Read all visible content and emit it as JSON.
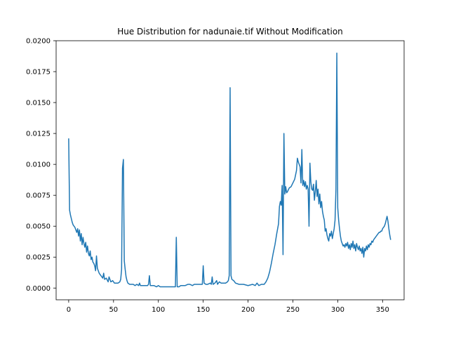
{
  "chart_data": {
    "type": "line",
    "title": "Hue Distribution for nadunaie.tif Without Modification",
    "xlabel": "",
    "ylabel": "",
    "xlim": [
      -14,
      374
    ],
    "ylim": [
      -0.00095,
      0.02
    ],
    "x_ticks": [
      0,
      50,
      100,
      150,
      200,
      250,
      300,
      350
    ],
    "x_tick_labels": [
      "0",
      "50",
      "100",
      "150",
      "200",
      "250",
      "300",
      "350"
    ],
    "y_ticks": [
      0.0,
      0.0025,
      0.005,
      0.0075,
      0.01,
      0.0125,
      0.015,
      0.0175,
      0.02
    ],
    "y_tick_labels": [
      "0.0000",
      "0.0025",
      "0.0050",
      "0.0075",
      "0.0100",
      "0.0125",
      "0.0150",
      "0.0175",
      "0.0200"
    ],
    "grid": false,
    "series": [
      {
        "name": "",
        "color": "#1f77b4",
        "points": [
          [
            0,
            0.0121
          ],
          [
            1,
            0.0063
          ],
          [
            2,
            0.0059
          ],
          [
            3,
            0.0056
          ],
          [
            4,
            0.0053
          ],
          [
            5,
            0.0051
          ],
          [
            6,
            0.005
          ],
          [
            7,
            0.0049
          ],
          [
            8,
            0.0047
          ],
          [
            9,
            0.0045
          ],
          [
            10,
            0.0048
          ],
          [
            11,
            0.0042
          ],
          [
            12,
            0.0047
          ],
          [
            13,
            0.0038
          ],
          [
            14,
            0.0044
          ],
          [
            15,
            0.0035
          ],
          [
            16,
            0.0041
          ],
          [
            17,
            0.0036
          ],
          [
            18,
            0.0033
          ],
          [
            19,
            0.0037
          ],
          [
            20,
            0.0029
          ],
          [
            21,
            0.0034
          ],
          [
            22,
            0.0028
          ],
          [
            23,
            0.0026
          ],
          [
            24,
            0.003
          ],
          [
            25,
            0.0023
          ],
          [
            26,
            0.0025
          ],
          [
            27,
            0.0021
          ],
          [
            28,
            0.002
          ],
          [
            29,
            0.0018
          ],
          [
            30,
            0.0014
          ],
          [
            31,
            0.0026
          ],
          [
            32,
            0.0016
          ],
          [
            33,
            0.0014
          ],
          [
            34,
            0.0012
          ],
          [
            35,
            0.0011
          ],
          [
            36,
            0.001
          ],
          [
            37,
            0.0009
          ],
          [
            38,
            0.0008
          ],
          [
            39,
            0.0012
          ],
          [
            40,
            0.0007
          ],
          [
            42,
            0.0008
          ],
          [
            44,
            0.0005
          ],
          [
            45,
            0.0009
          ],
          [
            47,
            0.0005
          ],
          [
            49,
            0.0006
          ],
          [
            51,
            0.0004
          ],
          [
            53,
            0.0004
          ],
          [
            55,
            0.0004
          ],
          [
            57,
            0.0005
          ],
          [
            58,
            0.0007
          ],
          [
            59,
            0.0015
          ],
          [
            60,
            0.0097
          ],
          [
            61,
            0.0104
          ],
          [
            62,
            0.0022
          ],
          [
            63,
            0.0015
          ],
          [
            64,
            0.0009
          ],
          [
            65,
            0.0006
          ],
          [
            66,
            0.0004
          ],
          [
            68,
            0.0003
          ],
          [
            70,
            0.0003
          ],
          [
            72,
            0.0003
          ],
          [
            74,
            0.0002
          ],
          [
            76,
            0.0003
          ],
          [
            78,
            0.0002
          ],
          [
            79,
            0.0004
          ],
          [
            80,
            0.0002
          ],
          [
            82,
            0.0002
          ],
          [
            84,
            0.0002
          ],
          [
            86,
            0.0002
          ],
          [
            88,
            0.0002
          ],
          [
            89,
            0.0003
          ],
          [
            90,
            0.001
          ],
          [
            91,
            0.0002
          ],
          [
            93,
            0.0002
          ],
          [
            95,
            0.0002
          ],
          [
            98,
            0.0001
          ],
          [
            100,
            0.0002
          ],
          [
            102,
            0.0001
          ],
          [
            105,
            0.0001
          ],
          [
            108,
            0.0001
          ],
          [
            110,
            0.0001
          ],
          [
            112,
            0.0001
          ],
          [
            115,
            0.0001
          ],
          [
            118,
            0.0001
          ],
          [
            119,
            0.0001
          ],
          [
            120,
            0.0041
          ],
          [
            121,
            0.0001
          ],
          [
            123,
            0.0001
          ],
          [
            125,
            0.0002
          ],
          [
            128,
            0.0002
          ],
          [
            130,
            0.0002
          ],
          [
            133,
            0.0003
          ],
          [
            135,
            0.0003
          ],
          [
            138,
            0.0002
          ],
          [
            140,
            0.0003
          ],
          [
            142,
            0.0003
          ],
          [
            145,
            0.0003
          ],
          [
            148,
            0.0003
          ],
          [
            149,
            0.0003
          ],
          [
            150,
            0.0018
          ],
          [
            151,
            0.0004
          ],
          [
            153,
            0.0003
          ],
          [
            155,
            0.0003
          ],
          [
            158,
            0.0004
          ],
          [
            159,
            0.0003
          ],
          [
            160,
            0.0009
          ],
          [
            161,
            0.0003
          ],
          [
            163,
            0.0004
          ],
          [
            165,
            0.0006
          ],
          [
            166,
            0.0003
          ],
          [
            168,
            0.0005
          ],
          [
            170,
            0.0004
          ],
          [
            172,
            0.0004
          ],
          [
            175,
            0.0004
          ],
          [
            177,
            0.0005
          ],
          [
            178,
            0.0006
          ],
          [
            179,
            0.001
          ],
          [
            180,
            0.0162
          ],
          [
            181,
            0.001
          ],
          [
            182,
            0.0007
          ],
          [
            184,
            0.0006
          ],
          [
            186,
            0.0004
          ],
          [
            190,
            0.0003
          ],
          [
            195,
            0.0003
          ],
          [
            200,
            0.0002
          ],
          [
            205,
            0.0003
          ],
          [
            208,
            0.0002
          ],
          [
            210,
            0.0004
          ],
          [
            212,
            0.0002
          ],
          [
            215,
            0.0003
          ],
          [
            218,
            0.0003
          ],
          [
            220,
            0.0005
          ],
          [
            222,
            0.0008
          ],
          [
            224,
            0.0013
          ],
          [
            226,
            0.002
          ],
          [
            228,
            0.0028
          ],
          [
            230,
            0.0035
          ],
          [
            232,
            0.0044
          ],
          [
            234,
            0.0052
          ],
          [
            235,
            0.0066
          ],
          [
            236,
            0.007
          ],
          [
            237,
            0.0067
          ],
          [
            238,
            0.0083
          ],
          [
            239,
            0.0027
          ],
          [
            240,
            0.0125
          ],
          [
            241,
            0.0076
          ],
          [
            242,
            0.0082
          ],
          [
            243,
            0.0077
          ],
          [
            244,
            0.0078
          ],
          [
            246,
            0.0081
          ],
          [
            248,
            0.0082
          ],
          [
            250,
            0.0085
          ],
          [
            252,
            0.0088
          ],
          [
            254,
            0.0095
          ],
          [
            255,
            0.0105
          ],
          [
            256,
            0.0102
          ],
          [
            257,
            0.01
          ],
          [
            258,
            0.0098
          ],
          [
            259,
            0.0085
          ],
          [
            260,
            0.0112
          ],
          [
            261,
            0.0083
          ],
          [
            262,
            0.0087
          ],
          [
            263,
            0.0082
          ],
          [
            264,
            0.0086
          ],
          [
            265,
            0.008
          ],
          [
            266,
            0.0083
          ],
          [
            267,
            0.008
          ],
          [
            268,
            0.005
          ],
          [
            269,
            0.0101
          ],
          [
            270,
            0.0086
          ],
          [
            271,
            0.008
          ],
          [
            272,
            0.0079
          ],
          [
            273,
            0.0084
          ],
          [
            274,
            0.0071
          ],
          [
            275,
            0.0078
          ],
          [
            276,
            0.0087
          ],
          [
            277,
            0.0074
          ],
          [
            278,
            0.008
          ],
          [
            279,
            0.0068
          ],
          [
            280,
            0.0076
          ],
          [
            281,
            0.0065
          ],
          [
            282,
            0.007
          ],
          [
            283,
            0.0062
          ],
          [
            284,
            0.0058
          ],
          [
            285,
            0.0055
          ],
          [
            286,
            0.0046
          ],
          [
            287,
            0.0048
          ],
          [
            288,
            0.0043
          ],
          [
            289,
            0.004
          ],
          [
            290,
            0.0038
          ],
          [
            291,
            0.0044
          ],
          [
            292,
            0.0042
          ],
          [
            293,
            0.0046
          ],
          [
            294,
            0.004
          ],
          [
            295,
            0.0044
          ],
          [
            296,
            0.0048
          ],
          [
            297,
            0.0055
          ],
          [
            298,
            0.008
          ],
          [
            299,
            0.019
          ],
          [
            300,
            0.0065
          ],
          [
            301,
            0.0055
          ],
          [
            302,
            0.0048
          ],
          [
            303,
            0.0042
          ],
          [
            304,
            0.0038
          ],
          [
            305,
            0.0036
          ],
          [
            306,
            0.0034
          ],
          [
            307,
            0.0035
          ],
          [
            308,
            0.0033
          ],
          [
            309,
            0.0036
          ],
          [
            310,
            0.0034
          ],
          [
            311,
            0.0037
          ],
          [
            312,
            0.0032
          ],
          [
            313,
            0.0035
          ],
          [
            314,
            0.0031
          ],
          [
            315,
            0.0036
          ],
          [
            316,
            0.0033
          ],
          [
            317,
            0.0038
          ],
          [
            318,
            0.0032
          ],
          [
            319,
            0.0035
          ],
          [
            320,
            0.003
          ],
          [
            321,
            0.0036
          ],
          [
            322,
            0.0033
          ],
          [
            323,
            0.0031
          ],
          [
            324,
            0.0034
          ],
          [
            325,
            0.003
          ],
          [
            326,
            0.0032
          ],
          [
            327,
            0.0028
          ],
          [
            328,
            0.0033
          ],
          [
            329,
            0.0025
          ],
          [
            330,
            0.0032
          ],
          [
            331,
            0.003
          ],
          [
            332,
            0.0034
          ],
          [
            333,
            0.0031
          ],
          [
            334,
            0.0035
          ],
          [
            335,
            0.0033
          ],
          [
            336,
            0.0036
          ],
          [
            337,
            0.0035
          ],
          [
            338,
            0.0038
          ],
          [
            339,
            0.0037
          ],
          [
            340,
            0.0039
          ],
          [
            341,
            0.004
          ],
          [
            342,
            0.0041
          ],
          [
            343,
            0.0042
          ],
          [
            344,
            0.0043
          ],
          [
            345,
            0.0044
          ],
          [
            346,
            0.0045
          ],
          [
            347,
            0.0045
          ],
          [
            348,
            0.0046
          ],
          [
            349,
            0.0046
          ],
          [
            350,
            0.0048
          ],
          [
            351,
            0.0049
          ],
          [
            352,
            0.005
          ],
          [
            353,
            0.0052
          ],
          [
            354,
            0.0055
          ],
          [
            355,
            0.0058
          ],
          [
            356,
            0.0054
          ],
          [
            357,
            0.0048
          ],
          [
            358,
            0.0043
          ],
          [
            359,
            0.0039
          ]
        ]
      }
    ]
  }
}
